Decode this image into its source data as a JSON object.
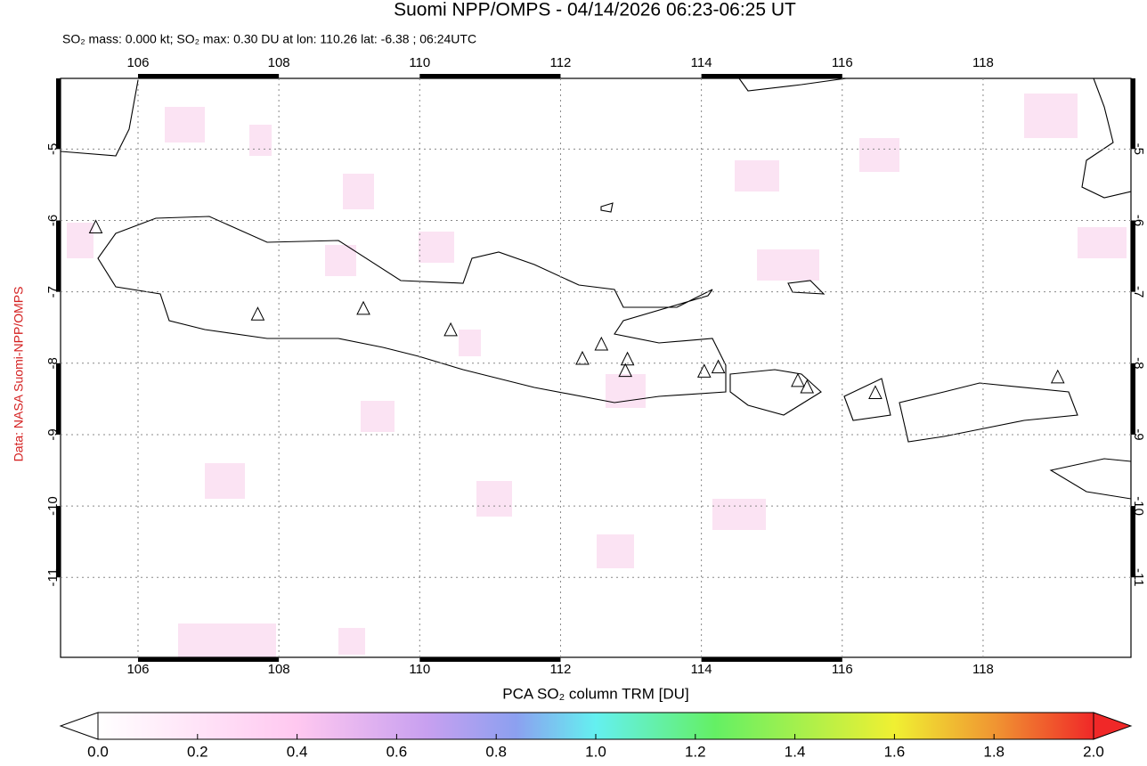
{
  "title": "Suomi NPP/OMPS - 04/14/2026 06:23-06:25 UT",
  "subtitle": "SO₂ mass: 0.000 kt; SO₂ max: 0.30 DU at lon: 110.26 lat: -6.38 ; 06:24UTC",
  "credit": "Data: NASA Suomi-NPP/OMPS",
  "map": {
    "xlim": [
      104.9,
      120.1
    ],
    "ylim": [
      -12.12,
      -4.01
    ],
    "xticks": [
      106,
      108,
      110,
      112,
      114,
      116,
      118
    ],
    "yticks": [
      -5,
      -6,
      -7,
      -8,
      -9,
      -10,
      -11
    ],
    "grid": true,
    "volcanoes": {
      "lon": [
        105.4,
        107.7,
        109.2,
        110.44,
        112.31,
        112.58,
        112.95,
        112.92,
        114.04,
        114.24,
        115.37,
        115.5,
        116.47,
        119.06
      ],
      "lat": [
        -6.1,
        -7.32,
        -7.24,
        -7.54,
        -7.94,
        -7.74,
        -7.95,
        -8.11,
        -8.12,
        -8.06,
        -8.25,
        -8.34,
        -8.42,
        -8.2
      ]
    }
  },
  "colorbar": {
    "label": "PCA SO₂ column TRM [DU]",
    "lim": [
      0,
      2
    ],
    "ticks": [
      {
        "value": 0,
        "label": "0.0"
      },
      {
        "value": 0.2,
        "label": "0.2"
      },
      {
        "value": 0.4,
        "label": "0.4"
      },
      {
        "value": 0.6,
        "label": "0.6"
      },
      {
        "value": 0.8,
        "label": "0.8"
      },
      {
        "value": 1,
        "label": "1.0"
      },
      {
        "value": 1.2,
        "label": "1.2"
      },
      {
        "value": 1.4,
        "label": "1.4"
      },
      {
        "value": 1.6,
        "label": "1.6"
      },
      {
        "value": 1.8,
        "label": "1.8"
      },
      {
        "value": 2,
        "label": "2.0"
      }
    ]
  }
}
